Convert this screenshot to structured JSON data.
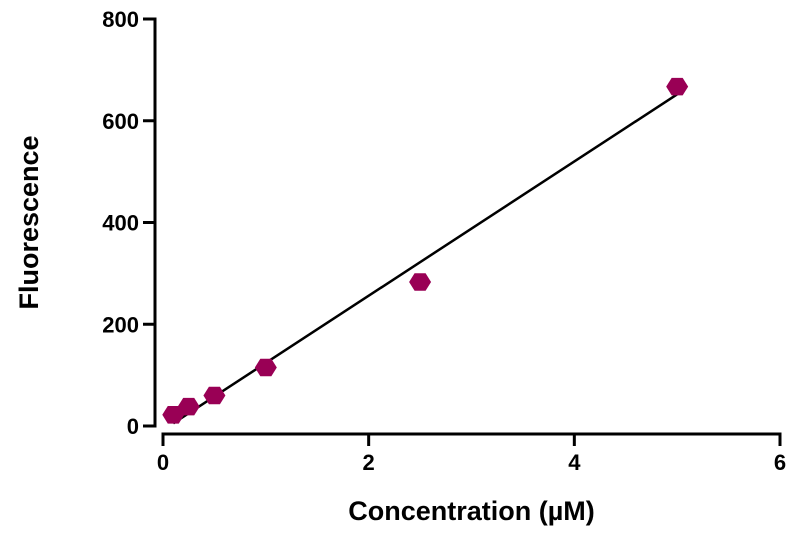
{
  "chart_data": {
    "type": "scatter",
    "title": "",
    "xlabel": "Concentration (µM)",
    "ylabel": "Fluorescence",
    "xlim": [
      0,
      6
    ],
    "ylim": [
      0,
      800
    ],
    "x_ticks": [
      0,
      2,
      4,
      6
    ],
    "y_ticks": [
      0,
      200,
      400,
      600,
      800
    ],
    "x_tick_labels": [
      "0",
      "2",
      "4",
      "6"
    ],
    "y_tick_labels": [
      "0",
      "200",
      "400",
      "600",
      "800"
    ],
    "grid": false,
    "legend": "none",
    "marker_shape": "hexagon",
    "series": [
      {
        "points": [
          {
            "x": 0.1,
            "y": 22
          },
          {
            "x": 0.25,
            "y": 38
          },
          {
            "x": 0.5,
            "y": 60
          },
          {
            "x": 1.0,
            "y": 115
          },
          {
            "x": 2.5,
            "y": 283
          },
          {
            "x": 5.0,
            "y": 667
          }
        ],
        "color": "#990055"
      }
    ],
    "fit_line": {
      "type": "linear",
      "x_range": [
        0.1,
        5.0
      ],
      "slope": 132.0,
      "intercept": -8.0,
      "color": "#000000"
    }
  }
}
